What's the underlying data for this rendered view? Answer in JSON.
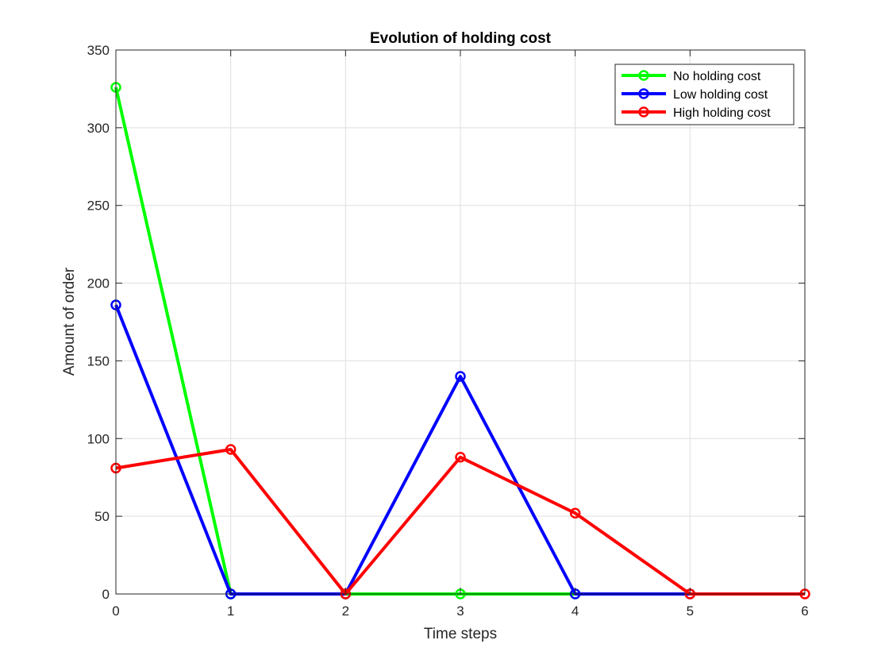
{
  "chart_data": {
    "type": "line",
    "title": "Evolution of holding cost",
    "xlabel": "Time steps",
    "ylabel": "Amount of order",
    "xlim": [
      0,
      6
    ],
    "ylim": [
      0,
      350
    ],
    "xticks": [
      0,
      1,
      2,
      3,
      4,
      5,
      6
    ],
    "yticks": [
      0,
      50,
      100,
      150,
      200,
      250,
      300,
      350
    ],
    "grid": true,
    "legend_position": "top-right",
    "x": [
      0,
      1,
      2,
      3,
      4,
      5,
      6
    ],
    "series": [
      {
        "name": "No holding cost",
        "color": "#00ff00",
        "marker": "circle",
        "values": [
          326,
          0,
          0,
          0,
          0,
          null,
          null
        ]
      },
      {
        "name": "Low holding cost",
        "color": "#0000ff",
        "marker": "circle",
        "values": [
          186,
          0,
          0,
          140,
          0,
          0,
          null
        ]
      },
      {
        "name": "High holding cost",
        "color": "#ff0000",
        "marker": "circle",
        "values": [
          81,
          93,
          0,
          88,
          52,
          0,
          0
        ]
      }
    ]
  }
}
